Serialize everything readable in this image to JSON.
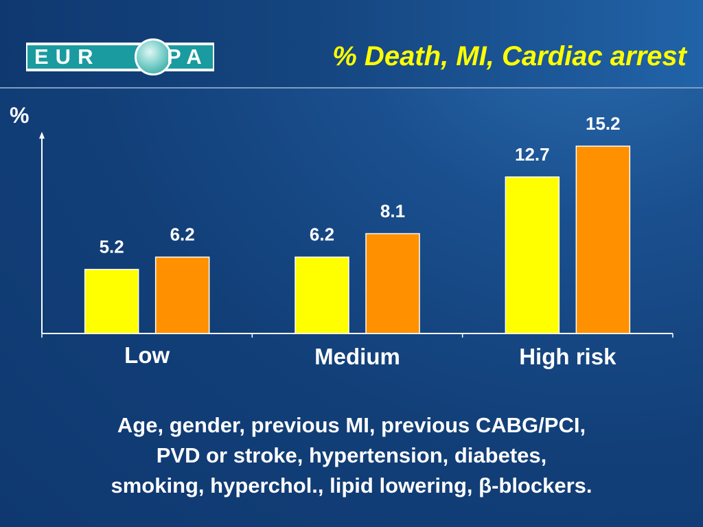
{
  "logo": {
    "left_text": "EUR",
    "right_text": "PA"
  },
  "title": "% Death, MI, Cardiac arrest",
  "colors": {
    "series1": "#ffff00",
    "series2": "#ff9000",
    "axis": "#ffffff",
    "label": "#ffffff",
    "title": "#ffff00"
  },
  "caption": {
    "line1": "Age, gender, previous MI, previous CABG/PCI,",
    "line2": "PVD or stroke, hypertension, diabetes,",
    "line3": "smoking, hyperchol., lipid lowering, β-blockers."
  },
  "chart_data": {
    "type": "bar",
    "title": "% Death, MI, Cardiac arrest",
    "ylabel": "%",
    "xlabel": "",
    "categories": [
      "Low",
      "Medium",
      "High risk"
    ],
    "series": [
      {
        "values": [
          5.2,
          6.2,
          12.7
        ]
      },
      {
        "values": [
          6.2,
          8.1,
          15.2
        ]
      }
    ],
    "data_labels": [
      [
        "5.2",
        "6.2",
        "12.7"
      ],
      [
        "6.2",
        "8.1",
        "15.2"
      ]
    ],
    "ylim": [
      0,
      16.5
    ],
    "grid": false,
    "legend": "none"
  }
}
